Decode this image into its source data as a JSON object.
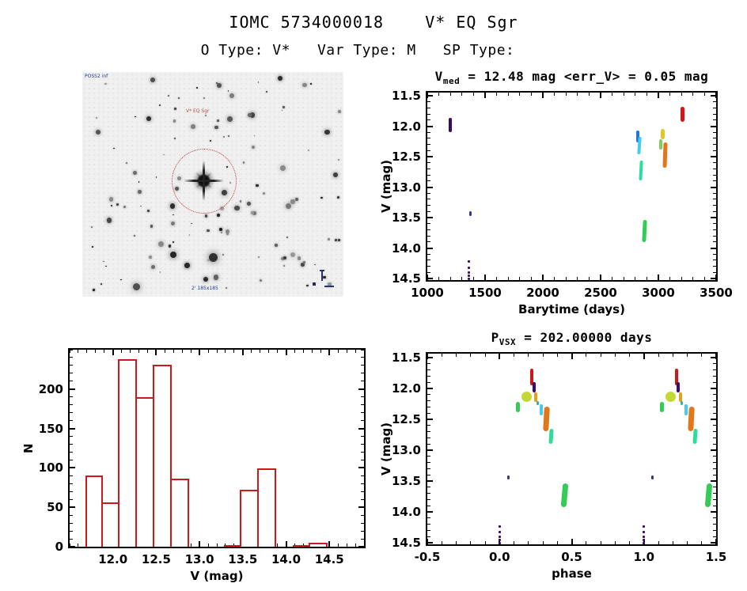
{
  "page": {
    "title": "IOMC 5734000018    V* EQ Sgr",
    "subtitle": "O Type: V*   Var Type: M   SP Type:"
  },
  "finder": {
    "survey_label": "POSS2 inf",
    "target_label": "V* EQ Sgr",
    "footer_label": "2' 185x185",
    "circle_color": "#c23434",
    "star_count": 135,
    "seed": 20180573
  },
  "chart_data": [
    {
      "type": "scatter",
      "title": "Vmed = 12.48 mag <err_V> = 0.05 mag",
      "title_parts": {
        "pre": "V",
        "sub": "med",
        "post": " = 12.48 mag <err_V> = 0.05 mag"
      },
      "xlabel": "Barytime (days)",
      "ylabel": "V (mag)",
      "xlim": [
        1000,
        3500
      ],
      "ylim": [
        11.5,
        14.5
      ],
      "xminor": 100,
      "yminor": 0.1,
      "xticks": {
        "values": [
          1000,
          1500,
          2000,
          2500,
          3000,
          3500
        ],
        "labels": [
          "1000",
          "1500",
          "2000",
          "2500",
          "3000",
          "3500"
        ]
      },
      "yticks": {
        "values": [
          11.5,
          12.0,
          12.5,
          13.0,
          13.5,
          14.0,
          14.5
        ],
        "labels": [
          "11.5",
          "12.0",
          "12.5",
          "13.0",
          "13.5",
          "14.0",
          "14.5"
        ]
      },
      "segments": [
        {
          "x": 1196,
          "v1": 11.87,
          "v2": 12.1,
          "c": "#3a0a68",
          "w": 4
        },
        {
          "x": 1370,
          "v1": 13.39,
          "v2": 13.48,
          "c": "#31319c",
          "w": 3
        },
        {
          "x": 2822,
          "v1": 12.07,
          "v2": 12.27,
          "c": "#2277dd",
          "w": 4
        },
        {
          "x": 2838,
          "v1": 12.17,
          "v2": 12.46,
          "c": "#44ccee",
          "w": 4,
          "tilt": 4
        },
        {
          "x": 2852,
          "v1": 12.56,
          "v2": 12.89,
          "c": "#2edc9b",
          "w": 4,
          "tilt": 3
        },
        {
          "x": 2880,
          "v1": 13.54,
          "v2": 13.9,
          "c": "#33cc55",
          "w": 5,
          "tilt": 3
        },
        {
          "x": 3020,
          "v1": 12.22,
          "v2": 12.38,
          "c": "#7ed05a",
          "w": 4
        },
        {
          "x": 3036,
          "v1": 12.05,
          "v2": 12.22,
          "c": "#e3c722",
          "w": 5
        },
        {
          "x": 3058,
          "v1": 12.26,
          "v2": 12.68,
          "c": "#e2761b",
          "w": 5,
          "tilt": 2
        },
        {
          "x": 3212,
          "v1": 11.68,
          "v2": 11.93,
          "c": "#cc1818",
          "w": 5
        }
      ],
      "dots": [
        {
          "x": 1362,
          "c": "#3a0a68",
          "values": [
            14.2,
            14.3,
            14.38,
            14.44,
            14.49
          ]
        }
      ]
    },
    {
      "type": "histogram",
      "xlabel": "V (mag)",
      "ylabel": "N",
      "xlim": [
        11.5,
        14.9
      ],
      "ylim": [
        0,
        250
      ],
      "xminor": 0.1,
      "yminor": 10,
      "bar_color": "#cc1a1a",
      "bin_start": 11.68,
      "bin_width": 0.2,
      "values": [
        90,
        56,
        238,
        190,
        231,
        86,
        0,
        0,
        2,
        72,
        99,
        0,
        1,
        5
      ],
      "xticks": {
        "values": [
          12.0,
          12.5,
          13.0,
          13.5,
          14.0,
          14.5
        ],
        "labels": [
          "12.0",
          "12.5",
          "13.0",
          "13.5",
          "14.0",
          "14.5"
        ]
      },
      "yticks": {
        "values": [
          0,
          50,
          100,
          150,
          200
        ],
        "labels": [
          "0",
          "50",
          "100",
          "150",
          "200"
        ]
      }
    },
    {
      "type": "scatter",
      "title": "PVSX = 202.00000 days",
      "title_parts": {
        "pre": "P",
        "sub": "VSX",
        "post": " = 202.00000 days"
      },
      "xlabel": "phase",
      "ylabel": "V (mag)",
      "xlim": [
        -0.5,
        1.5
      ],
      "ylim": [
        11.5,
        14.5
      ],
      "xminor": 0.1,
      "yminor": 0.1,
      "repeat": 1.0,
      "xticks": {
        "values": [
          -0.5,
          0.0,
          0.5,
          1.0,
          1.5
        ],
        "labels": [
          "-0.5",
          "0.0",
          "0.5",
          "1.0",
          "1.5"
        ]
      },
      "yticks": {
        "values": [
          11.5,
          12.0,
          12.5,
          13.0,
          13.5,
          14.0,
          14.5
        ],
        "labels": [
          "11.5",
          "12.0",
          "12.5",
          "13.0",
          "13.5",
          "14.0",
          "14.5"
        ]
      },
      "segments": [
        {
          "x": 0.06,
          "v1": 13.41,
          "v2": 13.48,
          "c": "#31319c",
          "w": 3
        },
        {
          "x": 0.125,
          "v1": 12.22,
          "v2": 12.38,
          "c": "#33cc55",
          "w": 5
        },
        {
          "x": 0.185,
          "v1": 12.05,
          "v2": 12.22,
          "c": "#c3d832",
          "w": 13
        },
        {
          "x": 0.225,
          "v1": 11.68,
          "v2": 11.95,
          "c": "#cc1818",
          "w": 4
        },
        {
          "x": 0.237,
          "v1": 11.9,
          "v2": 12.07,
          "c": "#3a0a68",
          "w": 4
        },
        {
          "x": 0.252,
          "v1": 12.07,
          "v2": 12.22,
          "c": "#e0a21e",
          "w": 4
        },
        {
          "x": 0.262,
          "v1": 12.21,
          "v2": 12.27,
          "c": "#35b0a0",
          "w": 3
        },
        {
          "x": 0.29,
          "v1": 12.26,
          "v2": 12.43,
          "c": "#44ccee",
          "w": 4
        },
        {
          "x": 0.325,
          "v1": 12.3,
          "v2": 12.7,
          "c": "#e2761b",
          "w": 7,
          "tilt": 3
        },
        {
          "x": 0.355,
          "v1": 12.66,
          "v2": 12.9,
          "c": "#2edc9b",
          "w": 5,
          "tilt": 4
        },
        {
          "x": 0.45,
          "v1": 13.54,
          "v2": 13.92,
          "c": "#33cc55",
          "w": 7,
          "tilt": 5
        }
      ],
      "dots": [
        {
          "x": 0.0,
          "c": "#3a0a68",
          "values": [
            14.22,
            14.31,
            14.38,
            14.44,
            14.49
          ]
        }
      ]
    }
  ]
}
